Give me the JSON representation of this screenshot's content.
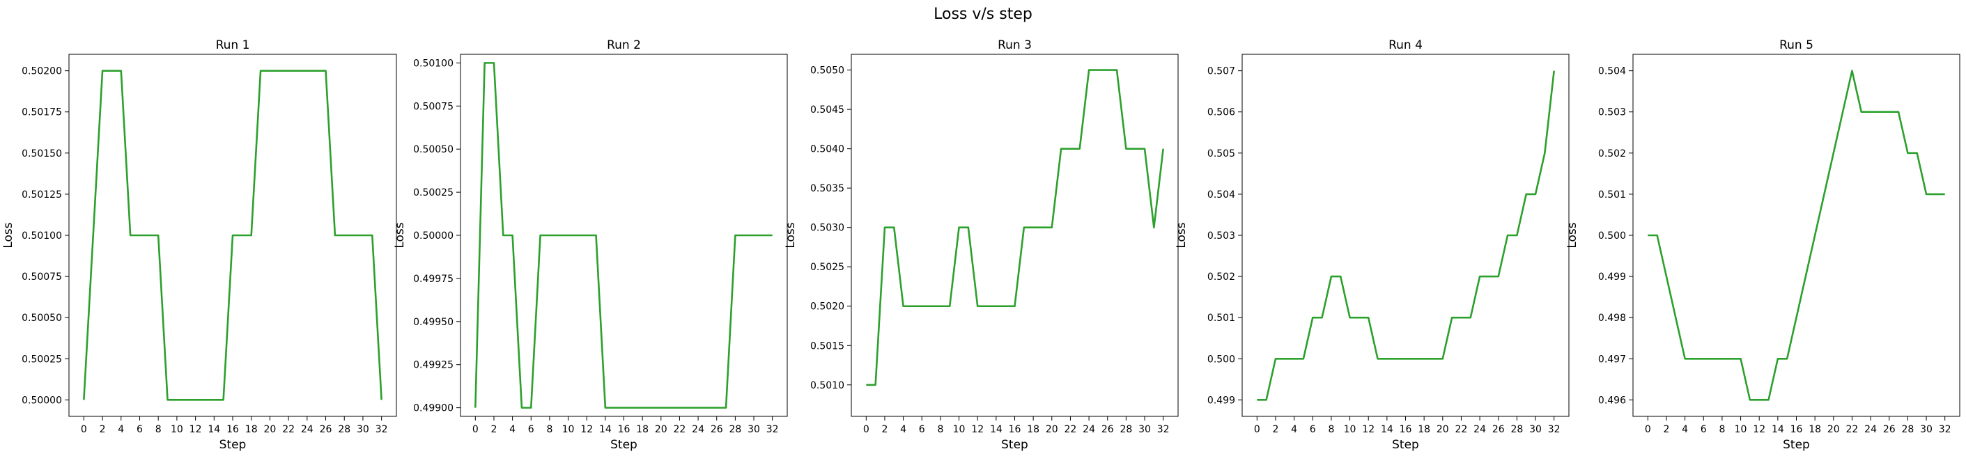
{
  "figure": {
    "suptitle": "Loss v/s step"
  },
  "line_color": "#2ca02c",
  "chart_data": [
    {
      "type": "line",
      "title": "Run 1",
      "xlabel": "Step",
      "ylabel": "Loss",
      "xlim": [
        -1.6,
        33.6
      ],
      "ylim": [
        0.4999,
        0.5021
      ],
      "xticks": [
        0,
        2,
        4,
        6,
        8,
        10,
        12,
        14,
        16,
        18,
        20,
        22,
        24,
        26,
        28,
        30,
        32
      ],
      "yticks": [
        "0.50000",
        "0.50025",
        "0.50050",
        "0.50075",
        "0.50100",
        "0.50125",
        "0.50150",
        "0.50175",
        "0.50200"
      ],
      "series": [
        {
          "x": [
            0,
            1,
            2,
            3,
            4,
            5,
            6,
            7,
            8,
            9,
            10,
            11,
            12,
            13,
            14,
            15,
            16,
            17,
            18,
            19,
            20,
            21,
            22,
            23,
            24,
            25,
            26,
            27,
            28,
            29,
            30,
            31,
            32
          ],
          "values": [
            0.5,
            0.501,
            0.502,
            0.502,
            0.502,
            0.501,
            0.501,
            0.501,
            0.501,
            0.5,
            0.5,
            0.5,
            0.5,
            0.5,
            0.5,
            0.5,
            0.501,
            0.501,
            0.501,
            0.502,
            0.502,
            0.502,
            0.502,
            0.502,
            0.502,
            0.502,
            0.502,
            0.501,
            0.501,
            0.501,
            0.501,
            0.501,
            0.5
          ]
        }
      ]
    },
    {
      "type": "line",
      "title": "Run 2",
      "xlabel": "Step",
      "ylabel": "Loss",
      "xlim": [
        -1.6,
        33.6
      ],
      "ylim": [
        0.49895,
        0.50105
      ],
      "xticks": [
        0,
        2,
        4,
        6,
        8,
        10,
        12,
        14,
        16,
        18,
        20,
        22,
        24,
        26,
        28,
        30,
        32
      ],
      "yticks": [
        "0.49900",
        "0.49925",
        "0.49950",
        "0.49975",
        "0.50000",
        "0.50025",
        "0.50050",
        "0.50075",
        "0.50100"
      ],
      "series": [
        {
          "x": [
            0,
            1,
            2,
            3,
            4,
            5,
            6,
            7,
            8,
            9,
            10,
            11,
            12,
            13,
            14,
            15,
            16,
            17,
            18,
            19,
            20,
            21,
            22,
            23,
            24,
            25,
            26,
            27,
            28,
            29,
            30,
            31,
            32
          ],
          "values": [
            0.499,
            0.501,
            0.501,
            0.5,
            0.5,
            0.499,
            0.499,
            0.5,
            0.5,
            0.5,
            0.5,
            0.5,
            0.5,
            0.5,
            0.499,
            0.499,
            0.499,
            0.499,
            0.499,
            0.499,
            0.499,
            0.499,
            0.499,
            0.499,
            0.499,
            0.499,
            0.499,
            0.499,
            0.5,
            0.5,
            0.5,
            0.5,
            0.5
          ]
        }
      ]
    },
    {
      "type": "line",
      "title": "Run 3",
      "xlabel": "Step",
      "ylabel": "Loss",
      "xlim": [
        -1.6,
        33.6
      ],
      "ylim": [
        0.5006,
        0.5052
      ],
      "xticks": [
        0,
        2,
        4,
        6,
        8,
        10,
        12,
        14,
        16,
        18,
        20,
        22,
        24,
        26,
        28,
        30,
        32
      ],
      "yticks": [
        "0.5010",
        "0.5015",
        "0.5020",
        "0.5025",
        "0.5030",
        "0.5035",
        "0.5040",
        "0.5045",
        "0.5050"
      ],
      "series": [
        {
          "x": [
            0,
            1,
            2,
            3,
            4,
            5,
            6,
            7,
            8,
            9,
            10,
            11,
            12,
            13,
            14,
            15,
            16,
            17,
            18,
            19,
            20,
            21,
            22,
            23,
            24,
            25,
            26,
            27,
            28,
            29,
            30,
            31,
            32
          ],
          "values": [
            0.501,
            0.501,
            0.503,
            0.503,
            0.502,
            0.502,
            0.502,
            0.502,
            0.502,
            0.502,
            0.503,
            0.503,
            0.502,
            0.502,
            0.502,
            0.502,
            0.502,
            0.503,
            0.503,
            0.503,
            0.503,
            0.504,
            0.504,
            0.504,
            0.505,
            0.505,
            0.505,
            0.505,
            0.504,
            0.504,
            0.504,
            0.503,
            0.504
          ]
        }
      ]
    },
    {
      "type": "line",
      "title": "Run 4",
      "xlabel": "Step",
      "ylabel": "Loss",
      "xlim": [
        -1.6,
        33.6
      ],
      "ylim": [
        0.4986,
        0.5074
      ],
      "xticks": [
        0,
        2,
        4,
        6,
        8,
        10,
        12,
        14,
        16,
        18,
        20,
        22,
        24,
        26,
        28,
        30,
        32
      ],
      "yticks": [
        "0.499",
        "0.500",
        "0.501",
        "0.502",
        "0.503",
        "0.504",
        "0.505",
        "0.506",
        "0.507"
      ],
      "series": [
        {
          "x": [
            0,
            1,
            2,
            3,
            4,
            5,
            6,
            7,
            8,
            9,
            10,
            11,
            12,
            13,
            14,
            15,
            16,
            17,
            18,
            19,
            20,
            21,
            22,
            23,
            24,
            25,
            26,
            27,
            28,
            29,
            30,
            31,
            32
          ],
          "values": [
            0.499,
            0.499,
            0.5,
            0.5,
            0.5,
            0.5,
            0.501,
            0.501,
            0.502,
            0.502,
            0.501,
            0.501,
            0.501,
            0.5,
            0.5,
            0.5,
            0.5,
            0.5,
            0.5,
            0.5,
            0.5,
            0.501,
            0.501,
            0.501,
            0.502,
            0.502,
            0.502,
            0.503,
            0.503,
            0.504,
            0.504,
            0.505,
            0.507
          ]
        }
      ]
    },
    {
      "type": "line",
      "title": "Run 5",
      "xlabel": "Step",
      "ylabel": "Loss",
      "xlim": [
        -1.6,
        33.6
      ],
      "ylim": [
        0.4956,
        0.5044
      ],
      "xticks": [
        0,
        2,
        4,
        6,
        8,
        10,
        12,
        14,
        16,
        18,
        20,
        22,
        24,
        26,
        28,
        30,
        32
      ],
      "yticks": [
        "0.496",
        "0.497",
        "0.498",
        "0.499",
        "0.500",
        "0.501",
        "0.502",
        "0.503",
        "0.504"
      ],
      "series": [
        {
          "x": [
            0,
            1,
            2,
            3,
            4,
            5,
            6,
            7,
            8,
            9,
            10,
            11,
            12,
            13,
            14,
            15,
            16,
            17,
            18,
            19,
            20,
            21,
            22,
            23,
            24,
            25,
            26,
            27,
            28,
            29,
            30,
            31,
            32
          ],
          "values": [
            0.5,
            0.5,
            0.499,
            0.498,
            0.497,
            0.497,
            0.497,
            0.497,
            0.497,
            0.497,
            0.497,
            0.496,
            0.496,
            0.496,
            0.497,
            0.497,
            0.498,
            0.499,
            0.5,
            0.501,
            0.502,
            0.503,
            0.504,
            0.503,
            0.503,
            0.503,
            0.503,
            0.503,
            0.502,
            0.502,
            0.501,
            0.501,
            0.501
          ]
        }
      ]
    }
  ]
}
